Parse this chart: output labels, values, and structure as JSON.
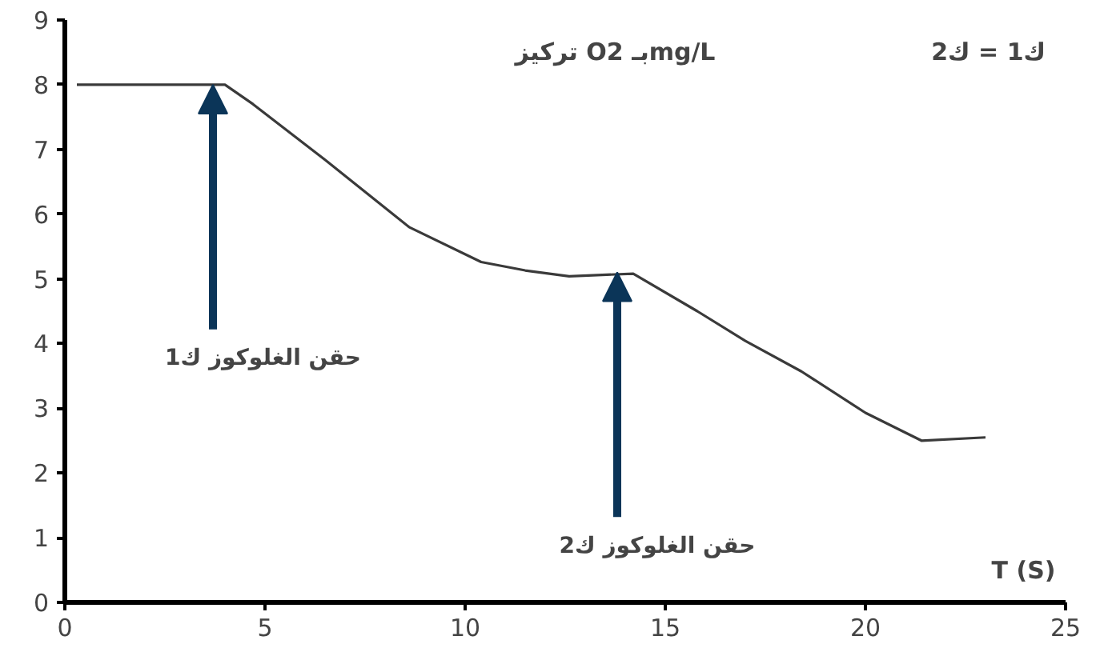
{
  "chart_data": {
    "type": "line",
    "x": [
      0.3,
      2,
      4.0,
      4.7,
      6.5,
      8.6,
      10.4,
      11.5,
      12.6,
      14.2,
      15.8,
      17,
      18.4,
      20,
      21.4,
      23.0
    ],
    "values": [
      8,
      8,
      8,
      7.7,
      6.84,
      5.8,
      5.26,
      5.13,
      5.04,
      5.08,
      4.5,
      4.04,
      3.57,
      2.93,
      2.5,
      2.55
    ],
    "color": "#3a3a3a",
    "xlabel": "T (S)",
    "ylabel": "تركيز O2 بـmg/L",
    "annotations": [
      {
        "text": "حقن الغلوكوز ك1",
        "x": 3.7,
        "y": 8
      },
      {
        "text": "حقن الغلوكوز ك2",
        "x": 13.8,
        "y": 5.1
      },
      "ك1 = ك2"
    ],
    "xlim": [
      0,
      25
    ],
    "ylim": [
      0,
      9
    ],
    "xticks": [
      0,
      5,
      10,
      15,
      20,
      25
    ],
    "yticks": [
      0,
      1,
      2,
      3,
      4,
      5,
      6,
      7,
      8,
      9
    ],
    "grid": false,
    "line_style": "solid",
    "marker": "none"
  }
}
